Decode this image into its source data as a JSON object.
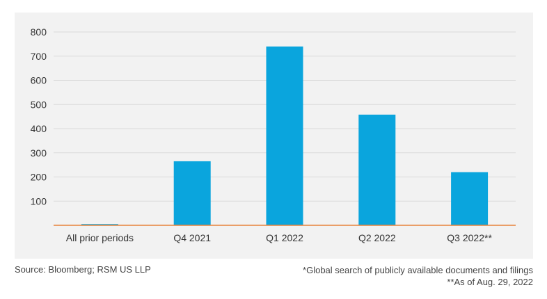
{
  "chart_data": {
    "type": "bar",
    "categories": [
      "All prior periods",
      "Q4 2021",
      "Q1 2022",
      "Q2 2022",
      "Q3 2022**"
    ],
    "values": [
      5,
      265,
      740,
      458,
      220
    ],
    "ylim": [
      0,
      800
    ],
    "yticks": [
      100,
      200,
      300,
      400,
      500,
      600,
      700,
      800
    ],
    "title": "",
    "xlabel": "",
    "ylabel": "",
    "grid": true,
    "bar_color": "#0aa5dd",
    "baseline_color": "#e8823a",
    "grid_color": "#d9d9d9"
  },
  "footer": {
    "source": "Source: Bloomberg; RSM US LLP",
    "note1": "*Global search of publicly available documents and filings",
    "note2": "**As of Aug. 29, 2022"
  }
}
